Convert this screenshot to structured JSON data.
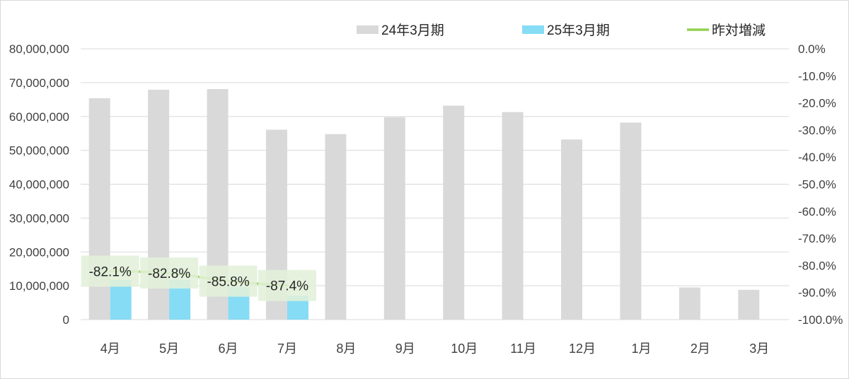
{
  "chart_data": {
    "type": "bar",
    "categories": [
      "4月",
      "5月",
      "6月",
      "7月",
      "8月",
      "9月",
      "10月",
      "11月",
      "12月",
      "1月",
      "2月",
      "3月"
    ],
    "series": [
      {
        "name": "24年3月期",
        "kind": "bar",
        "axis": "left",
        "color": "#d9d9d9",
        "values": [
          65400000,
          67900000,
          68100000,
          56100000,
          54800000,
          59800000,
          63200000,
          61300000,
          53200000,
          58200000,
          9500000,
          8800000
        ]
      },
      {
        "name": "25年3月期",
        "kind": "bar",
        "axis": "left",
        "color": "#86dcf5",
        "values": [
          11700000,
          11700000,
          9600000,
          7100000,
          null,
          null,
          null,
          null,
          null,
          null,
          null,
          null
        ]
      },
      {
        "name": "昨対増減",
        "kind": "line",
        "axis": "right",
        "color": "#92d050",
        "values": [
          -82.1,
          -82.8,
          -85.8,
          -87.4,
          null,
          null,
          null,
          null,
          null,
          null,
          null,
          null
        ],
        "data_labels": [
          "-82.1%",
          "-82.8%",
          "-85.8%",
          "-87.4%"
        ],
        "label_box_color": "#e2f0d9"
      }
    ],
    "y_left": {
      "lim": [
        0,
        80000000
      ],
      "ticks": [
        0,
        10000000,
        20000000,
        30000000,
        40000000,
        50000000,
        60000000,
        70000000,
        80000000
      ],
      "tick_labels": [
        "0",
        "10,000,000",
        "20,000,000",
        "30,000,000",
        "40,000,000",
        "50,000,000",
        "60,000,000",
        "70,000,000",
        "80,000,000"
      ]
    },
    "y_right": {
      "lim": [
        -100,
        0
      ],
      "ticks": [
        0,
        -10,
        -20,
        -30,
        -40,
        -50,
        -60,
        -70,
        -80,
        -90,
        -100
      ],
      "tick_labels": [
        "0.0%",
        "-10.0%",
        "-20.0%",
        "-30.0%",
        "-40.0%",
        "-50.0%",
        "-60.0%",
        "-70.0%",
        "-80.0%",
        "-90.0%",
        "-100.0%"
      ]
    },
    "grid": true,
    "grid_color": "#d9d9d9",
    "legend": {
      "position": "top-right",
      "entries": [
        "24年3月期",
        "25年3月期",
        "昨対増減"
      ]
    }
  }
}
